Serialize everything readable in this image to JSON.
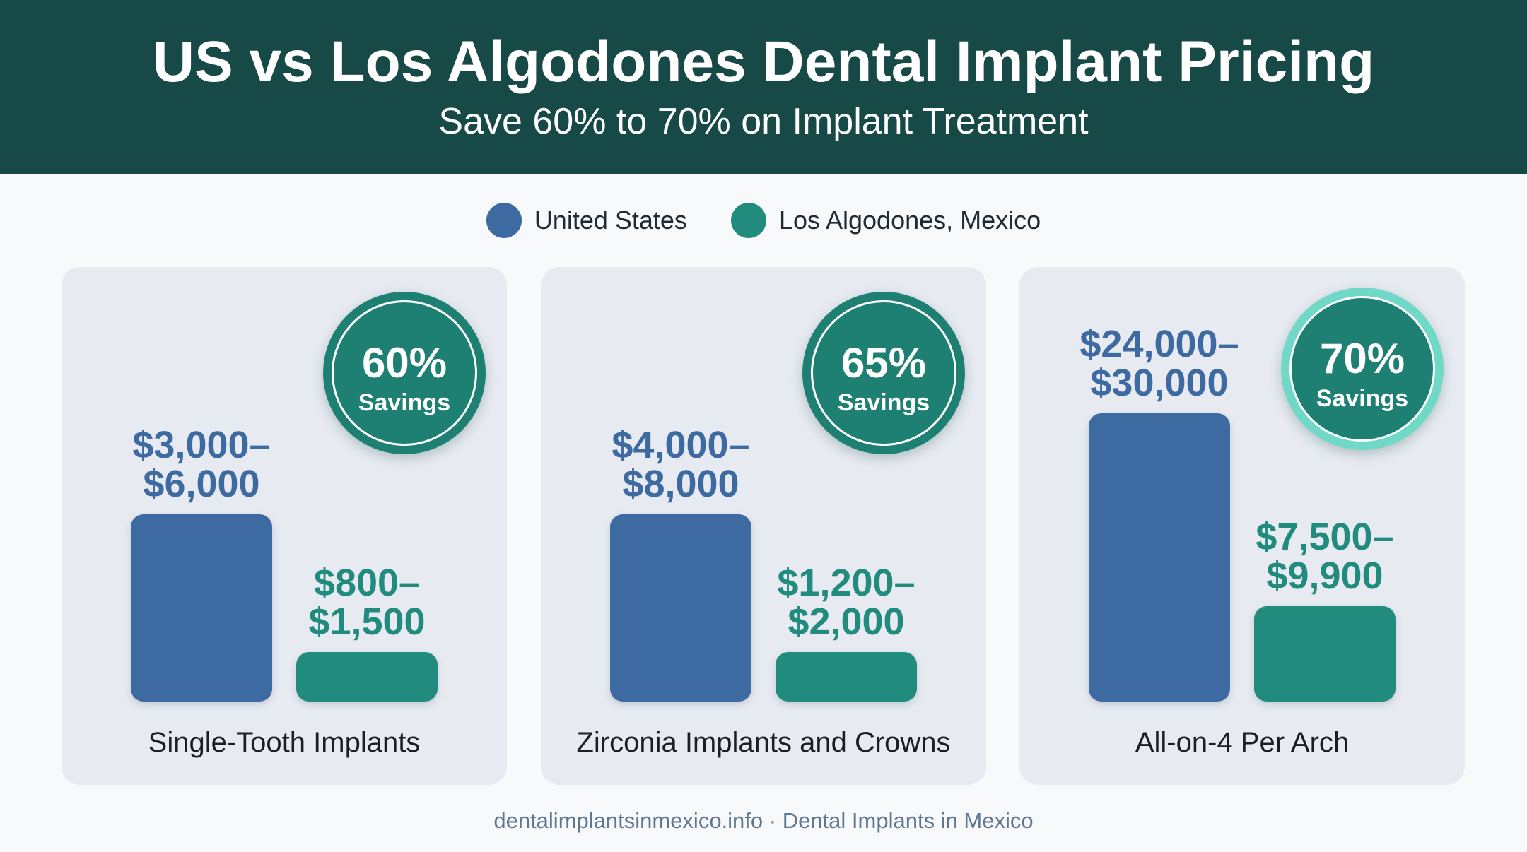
{
  "header": {
    "title": "US vs Los Algodones Dental Implant Pricing",
    "subtitle": "Save 60% to 70% on Implant Treatment"
  },
  "legend": [
    {
      "label": "United States",
      "color": "#3d6aa1"
    },
    {
      "label": "Los Algodones, Mexico",
      "color": "#218c7e"
    }
  ],
  "footer": "dentalimplantsinmexico.info · Dental Implants in Mexico",
  "colors": {
    "us": "#3d6aa1",
    "mexico": "#218c7e",
    "header": "#174a47"
  },
  "chart_data": [
    {
      "type": "bar",
      "category": "Single-Tooth Implants",
      "savings": {
        "percent": "60%",
        "label": "Savings"
      },
      "series": [
        {
          "name": "United States",
          "low": 3000,
          "high": 6000,
          "label_line1": "$3,000–",
          "label_line2": "$6,000"
        },
        {
          "name": "Los Algodones, Mexico",
          "low": 800,
          "high": 1500,
          "label_line1": "$800–",
          "label_line2": "$1,500"
        }
      ]
    },
    {
      "type": "bar",
      "category": "Zirconia Implants and Crowns",
      "savings": {
        "percent": "65%",
        "label": "Savings"
      },
      "series": [
        {
          "name": "United States",
          "low": 4000,
          "high": 8000,
          "label_line1": "$4,000–",
          "label_line2": "$8,000"
        },
        {
          "name": "Los Algodones, Mexico",
          "low": 1200,
          "high": 2000,
          "label_line1": "$1,200–",
          "label_line2": "$2,000"
        }
      ]
    },
    {
      "type": "bar",
      "category": "All-on-4 Per Arch",
      "savings": {
        "percent": "70%",
        "label": "Savings"
      },
      "series": [
        {
          "name": "United States",
          "low": 24000,
          "high": 30000,
          "label_line1": "$24,000–",
          "label_line2": "$30,000"
        },
        {
          "name": "Los Algodones, Mexico",
          "low": 7500,
          "high": 9900,
          "label_line1": "$7,500–",
          "label_line2": "$9,900"
        }
      ]
    }
  ]
}
